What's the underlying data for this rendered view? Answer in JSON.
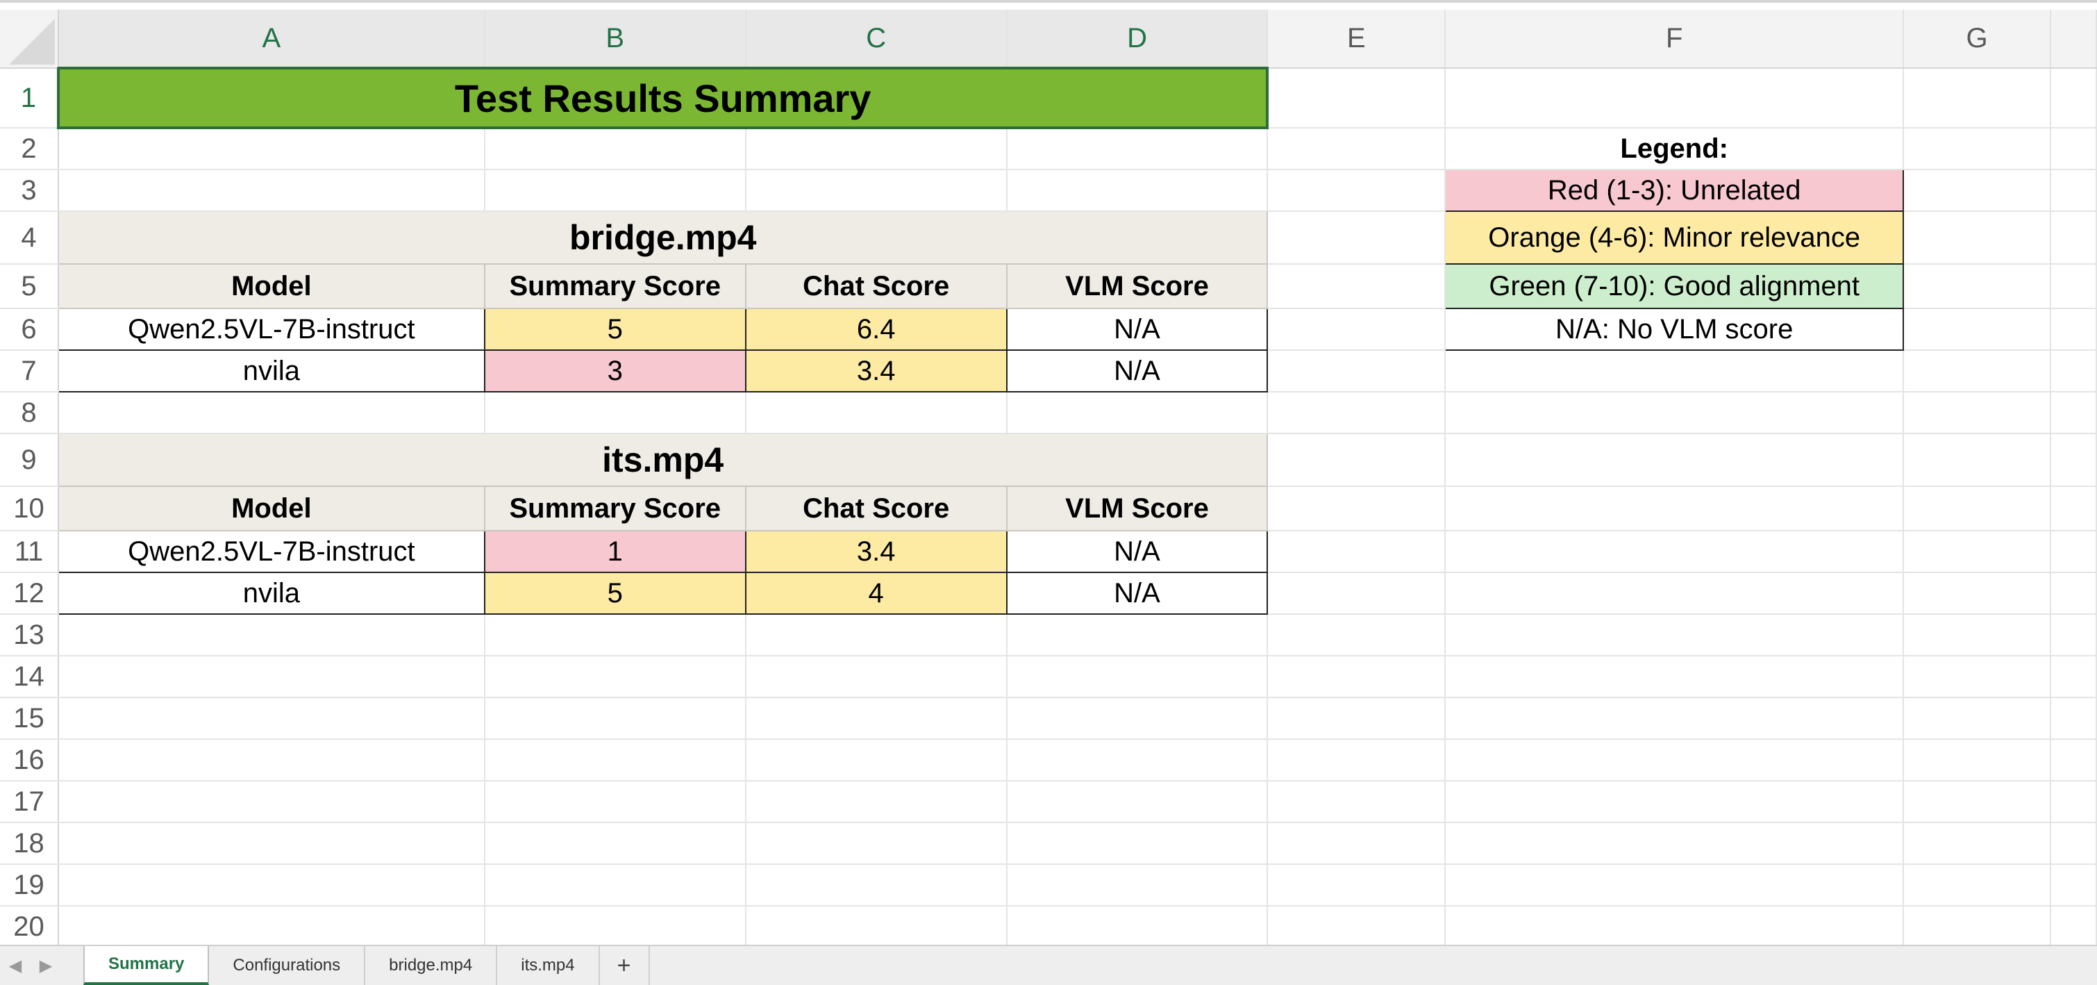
{
  "columns": [
    "A",
    "B",
    "C",
    "D",
    "E",
    "F",
    "G"
  ],
  "rows": [
    "1",
    "2",
    "3",
    "4",
    "5",
    "6",
    "7",
    "8",
    "9",
    "10",
    "11",
    "12",
    "13",
    "14",
    "15",
    "16",
    "17",
    "18",
    "19",
    "20"
  ],
  "title": "Test Results Summary",
  "sections": [
    {
      "name": "bridge.mp4",
      "headers": [
        "Model",
        "Summary Score",
        "Chat Score",
        "VLM Score"
      ],
      "rows": [
        {
          "model": "Qwen2.5VL-7B-instruct",
          "summary": "5",
          "chat": "6.4",
          "vlm": "N/A"
        },
        {
          "model": "nvila",
          "summary": "3",
          "chat": "3.4",
          "vlm": "N/A"
        }
      ]
    },
    {
      "name": "its.mp4",
      "headers": [
        "Model",
        "Summary Score",
        "Chat Score",
        "VLM Score"
      ],
      "rows": [
        {
          "model": "Qwen2.5VL-7B-instruct",
          "summary": "1",
          "chat": "3.4",
          "vlm": "N/A"
        },
        {
          "model": "nvila",
          "summary": "5",
          "chat": "4",
          "vlm": "N/A"
        }
      ]
    }
  ],
  "legend": {
    "title": "Legend:",
    "items": [
      {
        "label": "Red (1-3): Unrelated",
        "color": "#f7c8d0"
      },
      {
        "label": "Orange (4-6): Minor relevance",
        "color": "#fdeba4"
      },
      {
        "label": "Green (7-10): Good alignment",
        "color": "#cdeecd"
      },
      {
        "label": "N/A: No VLM score",
        "color": "#ffffff"
      }
    ]
  },
  "sheet_tabs": [
    {
      "label": "Summary",
      "active": true
    },
    {
      "label": "Configurations",
      "active": false
    },
    {
      "label": "bridge.mp4",
      "active": false
    },
    {
      "label": "its.mp4",
      "active": false
    }
  ],
  "add_sheet_label": "+",
  "colors": {
    "accent": "#217346",
    "title_fill": "#7cb733",
    "header_fill": "#eeece5"
  }
}
